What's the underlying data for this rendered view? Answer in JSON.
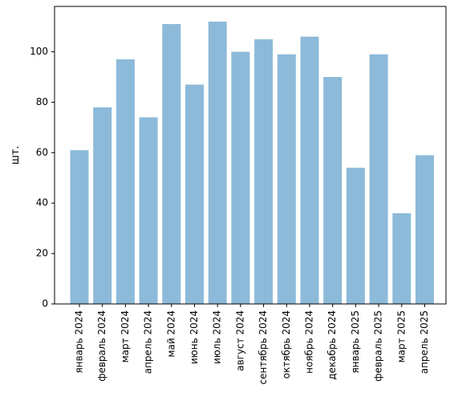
{
  "chart_data": {
    "type": "bar",
    "categories": [
      "январь 2024",
      "февраль 2024",
      "март 2024",
      "апрель 2024",
      "май 2024",
      "июнь 2024",
      "июль 2024",
      "август 2024",
      "сентябрь 2024",
      "октябрь 2024",
      "ноябрь 2024",
      "декабрь 2024",
      "январь 2025",
      "февраль 2025",
      "март 2025",
      "апрель 2025"
    ],
    "values": [
      61,
      78,
      97,
      74,
      111,
      87,
      112,
      100,
      105,
      99,
      106,
      90,
      54,
      99,
      36,
      59
    ],
    "xlabel": "",
    "ylabel": "шт.",
    "ylim": [
      0,
      118
    ],
    "yticks": [
      0,
      20,
      40,
      60,
      80,
      100
    ],
    "grid": false,
    "bar_color": "#8dbad9"
  }
}
